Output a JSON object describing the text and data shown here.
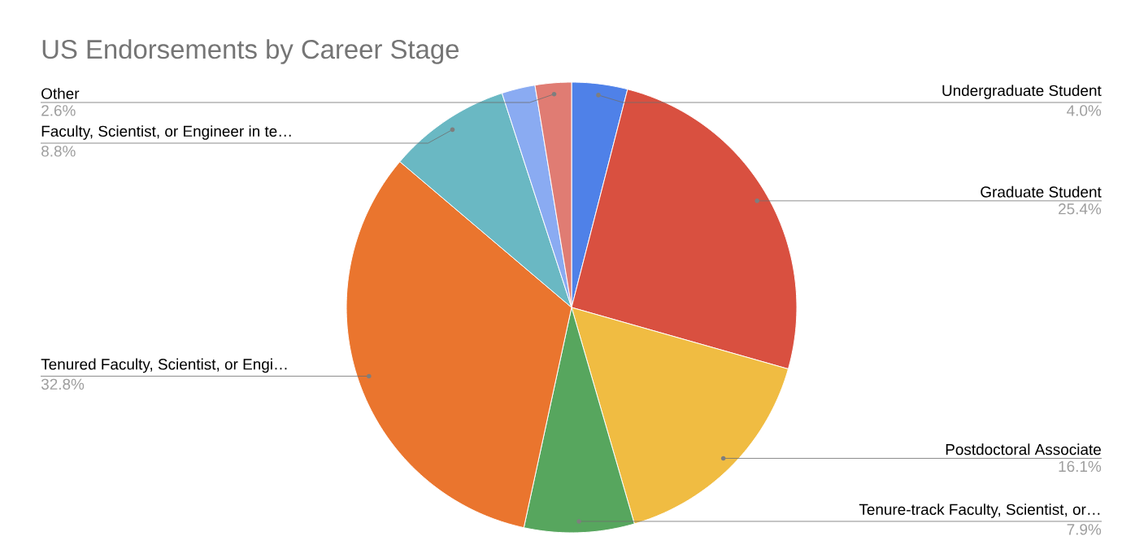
{
  "chart_data": {
    "type": "pie",
    "title": "US Endorsements by Career Stage",
    "categories": [
      "Undergraduate Student",
      "Graduate Student",
      "Postdoctoral Associate",
      "Tenure-track Faculty, Scientist, or…",
      "Tenured Faculty, Scientist, or Engi…",
      "Faculty, Scientist, or Engineer in te…",
      null,
      "Other"
    ],
    "values": [
      4.0,
      25.4,
      16.1,
      7.9,
      32.8,
      8.8,
      2.4,
      2.6
    ],
    "value_labels": [
      "4.0%",
      "25.4%",
      "16.1%",
      "7.9%",
      "32.8%",
      "8.8%",
      null,
      "2.6%"
    ],
    "colors": [
      "#4f81e8",
      "#d95040",
      "#f0bc42",
      "#57a65e",
      "#ea752e",
      "#6ab8c3",
      "#8aabf2",
      "#e07c73"
    ]
  }
}
